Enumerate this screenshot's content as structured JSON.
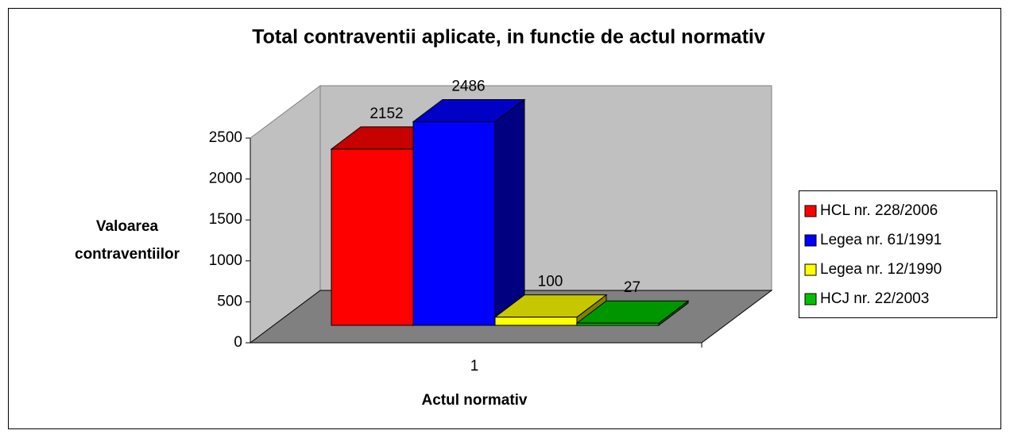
{
  "chart_data": {
    "type": "bar3d",
    "title": "Total contraventii aplicate, in functie de actul normativ",
    "y_label": "Valoarea contraventiilor",
    "x_label": "Actul normativ",
    "categories": [
      "1"
    ],
    "series": [
      {
        "name": "HCL nr. 228/2006",
        "color": "#ff0000",
        "values": [
          2152
        ]
      },
      {
        "name": "Legea nr. 61/1991",
        "color": "#0000ff",
        "values": [
          2486
        ]
      },
      {
        "name": "Legea nr. 12/1990",
        "color": "#ffff00",
        "values": [
          100
        ]
      },
      {
        "name": "HCJ nr. 22/2003",
        "color": "#00c000",
        "values": [
          27
        ]
      }
    ],
    "ylim": [
      0,
      2500
    ],
    "yticks": [
      0,
      500,
      1000,
      1500,
      2000,
      2500
    ],
    "grid": false,
    "legend": "right",
    "wall_color": "#c0c0c0",
    "floor_color": "#808080"
  }
}
